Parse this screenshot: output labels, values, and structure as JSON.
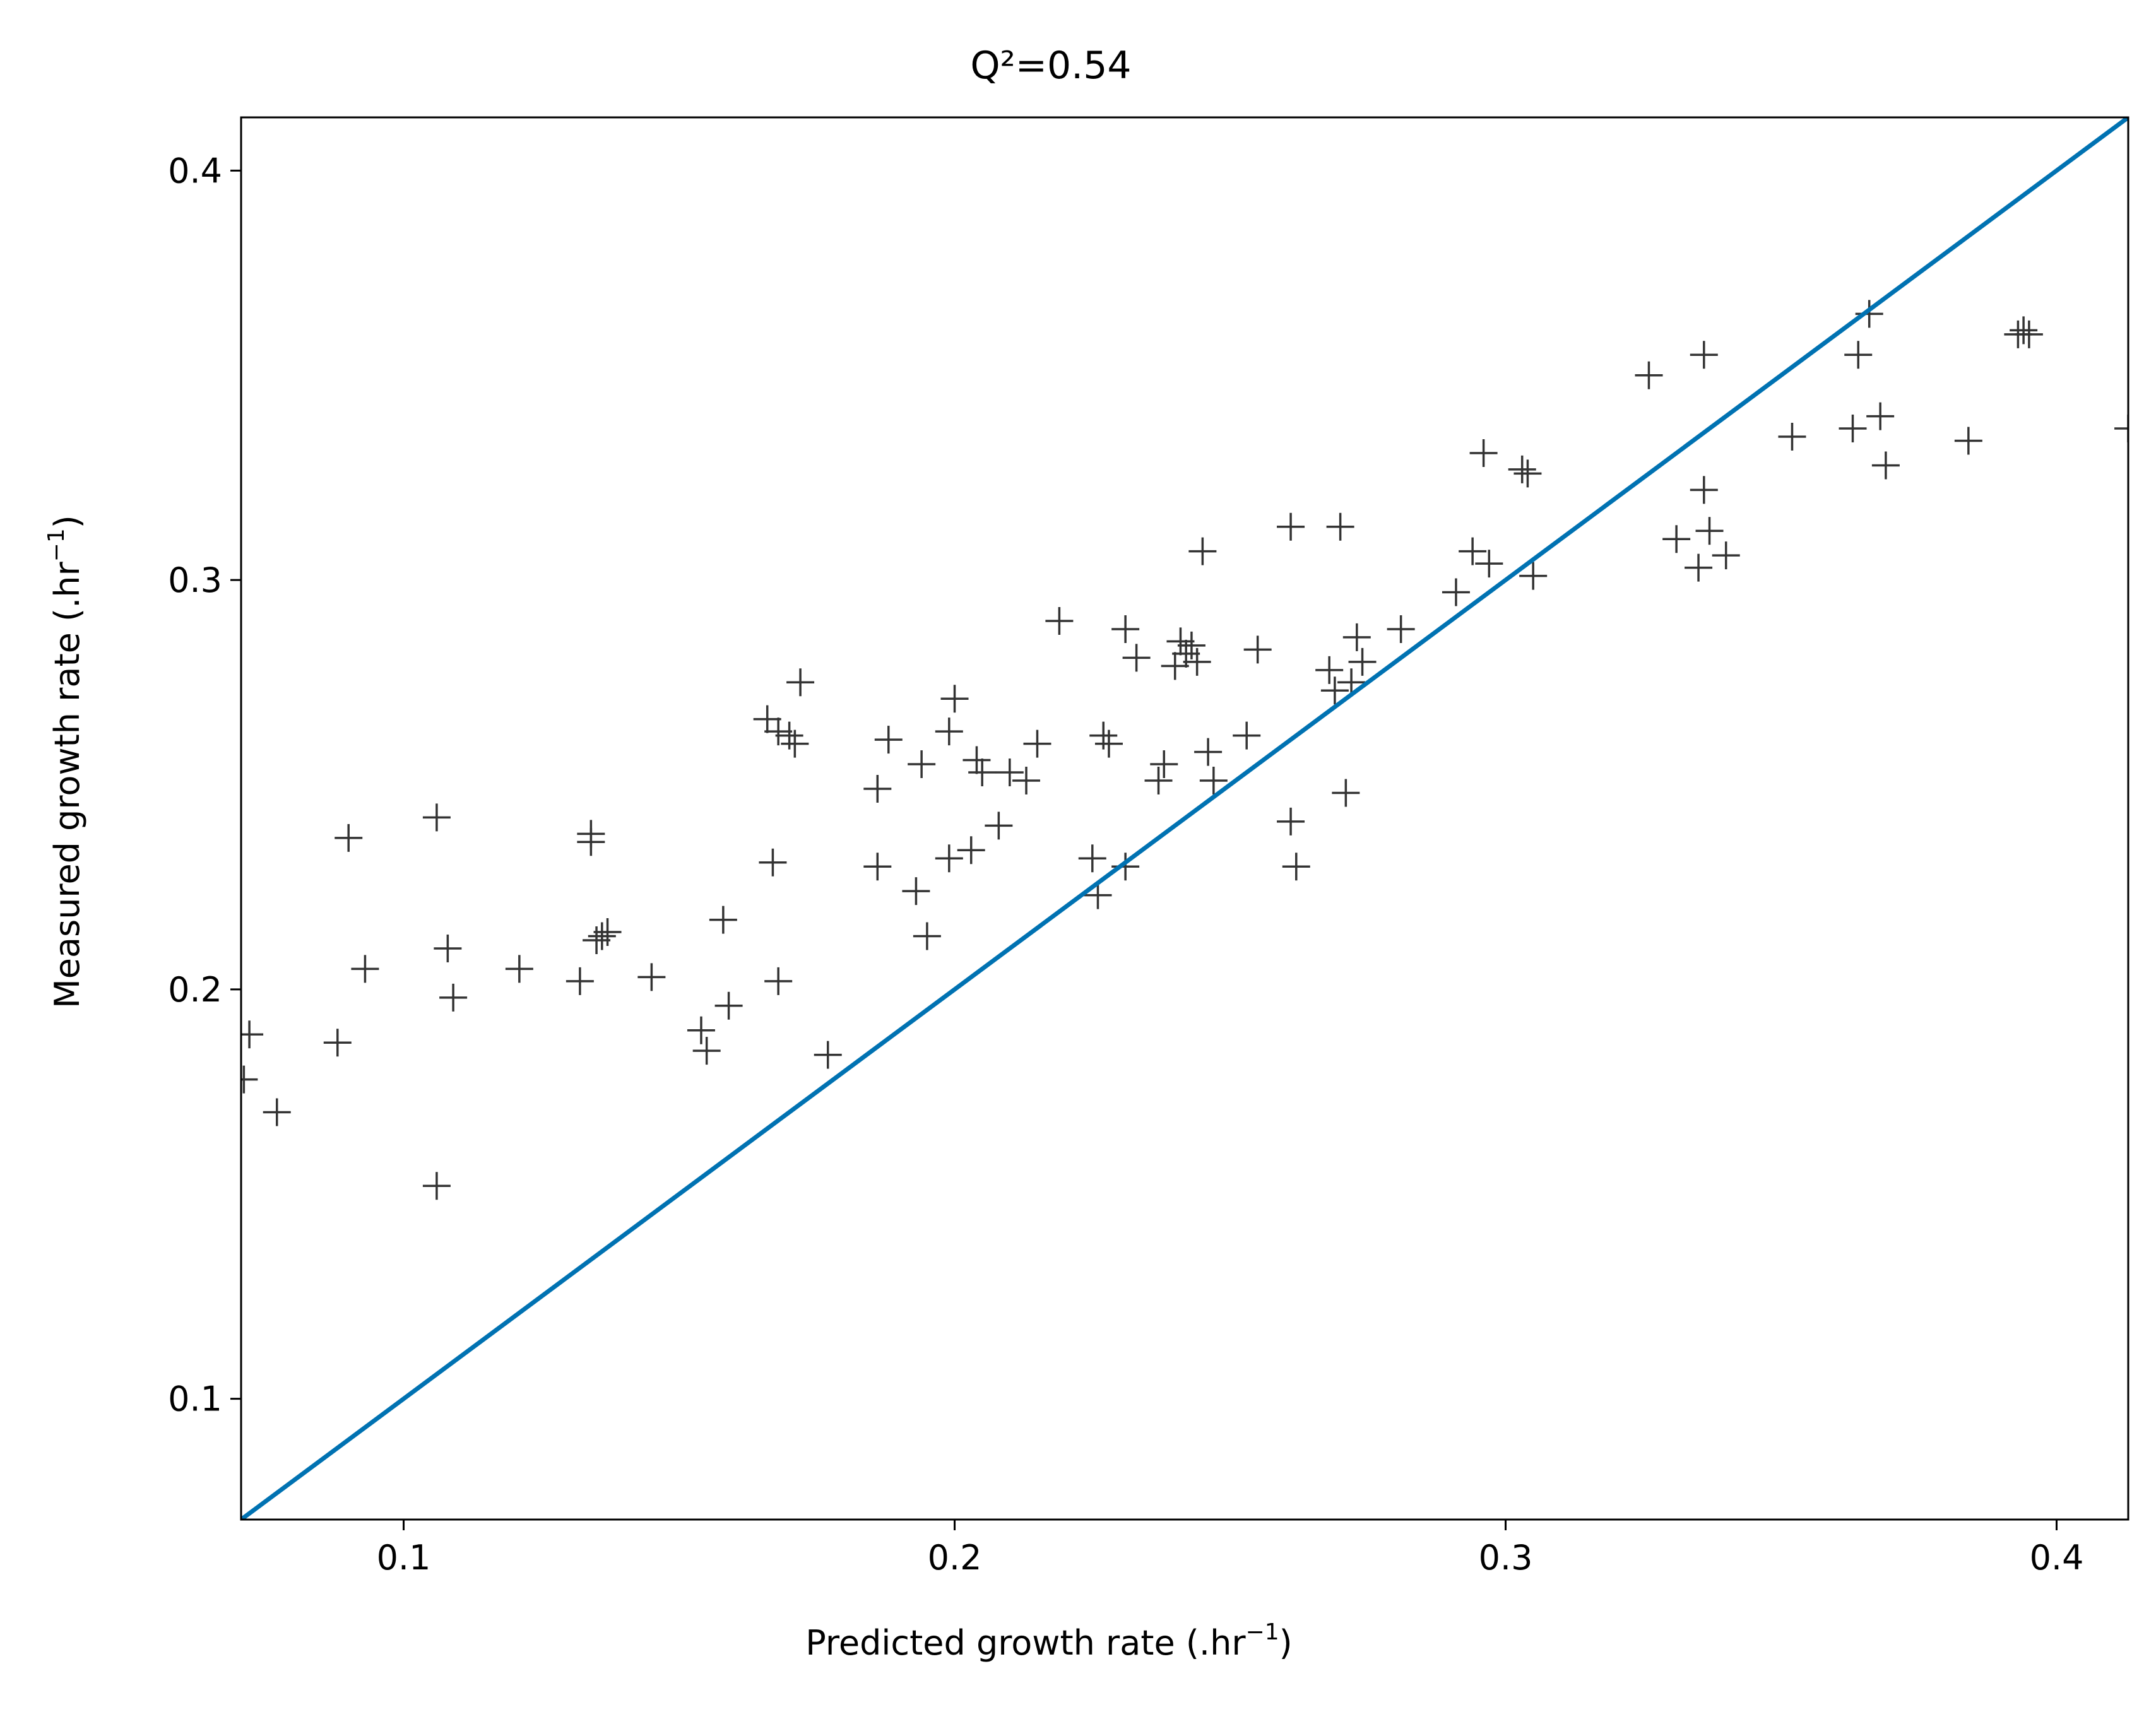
{
  "chart_data": {
    "type": "scatter",
    "title": "Q²=0.54",
    "xlabel": {
      "text": "Predicted growth rate (.hr",
      "sup": "−1",
      "close": ")"
    },
    "ylabel": {
      "text": "Measured growth rate (.hr",
      "sup": "−1",
      "close": ")"
    },
    "xlim": [
      0.0705,
      0.413
    ],
    "ylim": [
      0.0705,
      0.413
    ],
    "xticks": [
      0.1,
      0.2,
      0.3,
      0.4
    ],
    "yticks": [
      0.1,
      0.2,
      0.3,
      0.4
    ],
    "xtick_labels": [
      "0.1",
      "0.2",
      "0.3",
      "0.4"
    ],
    "ytick_labels": [
      "0.1",
      "0.2",
      "0.3",
      "0.4"
    ],
    "grid": false,
    "marker": "+",
    "colors": {
      "marker": "#333333",
      "line": "#0072b2",
      "axes": "#000000"
    },
    "reference_line": {
      "kind": "identity",
      "x": [
        0.0705,
        0.413
      ],
      "y": [
        0.0705,
        0.413
      ]
    },
    "series": [
      {
        "points": [
          [
            0.071,
            0.178
          ],
          [
            0.072,
            0.189
          ],
          [
            0.077,
            0.17
          ],
          [
            0.088,
            0.187
          ],
          [
            0.09,
            0.237
          ],
          [
            0.093,
            0.205
          ],
          [
            0.106,
            0.242
          ],
          [
            0.106,
            0.152
          ],
          [
            0.108,
            0.21
          ],
          [
            0.109,
            0.198
          ],
          [
            0.121,
            0.205
          ],
          [
            0.132,
            0.202
          ],
          [
            0.134,
            0.238
          ],
          [
            0.134,
            0.236
          ],
          [
            0.135,
            0.212
          ],
          [
            0.136,
            0.213
          ],
          [
            0.137,
            0.214
          ],
          [
            0.145,
            0.203
          ],
          [
            0.154,
            0.19
          ],
          [
            0.155,
            0.185
          ],
          [
            0.158,
            0.217
          ],
          [
            0.159,
            0.196
          ],
          [
            0.166,
            0.266
          ],
          [
            0.167,
            0.231
          ],
          [
            0.168,
            0.263
          ],
          [
            0.168,
            0.202
          ],
          [
            0.17,
            0.262
          ],
          [
            0.171,
            0.26
          ],
          [
            0.172,
            0.275
          ],
          [
            0.177,
            0.184
          ],
          [
            0.186,
            0.249
          ],
          [
            0.186,
            0.23
          ],
          [
            0.188,
            0.261
          ],
          [
            0.193,
            0.224
          ],
          [
            0.194,
            0.255
          ],
          [
            0.195,
            0.213
          ],
          [
            0.199,
            0.263
          ],
          [
            0.199,
            0.232
          ],
          [
            0.2,
            0.271
          ],
          [
            0.203,
            0.234
          ],
          [
            0.204,
            0.256
          ],
          [
            0.205,
            0.253
          ],
          [
            0.208,
            0.24
          ],
          [
            0.21,
            0.253
          ],
          [
            0.213,
            0.251
          ],
          [
            0.215,
            0.26
          ],
          [
            0.219,
            0.29
          ],
          [
            0.225,
            0.232
          ],
          [
            0.226,
            0.223
          ],
          [
            0.227,
            0.262
          ],
          [
            0.228,
            0.26
          ],
          [
            0.231,
            0.288
          ],
          [
            0.231,
            0.23
          ],
          [
            0.233,
            0.281
          ],
          [
            0.237,
            0.251
          ],
          [
            0.238,
            0.255
          ],
          [
            0.24,
            0.279
          ],
          [
            0.241,
            0.285
          ],
          [
            0.242,
            0.282
          ],
          [
            0.243,
            0.284
          ],
          [
            0.244,
            0.28
          ],
          [
            0.245,
            0.307
          ],
          [
            0.246,
            0.258
          ],
          [
            0.247,
            0.251
          ],
          [
            0.253,
            0.262
          ],
          [
            0.255,
            0.283
          ],
          [
            0.261,
            0.241
          ],
          [
            0.261,
            0.313
          ],
          [
            0.262,
            0.23
          ],
          [
            0.268,
            0.278
          ],
          [
            0.269,
            0.273
          ],
          [
            0.27,
            0.313
          ],
          [
            0.271,
            0.248
          ],
          [
            0.272,
            0.275
          ],
          [
            0.273,
            0.286
          ],
          [
            0.274,
            0.28
          ],
          [
            0.281,
            0.288
          ],
          [
            0.291,
            0.297
          ],
          [
            0.294,
            0.307
          ],
          [
            0.296,
            0.331
          ],
          [
            0.297,
            0.304
          ],
          [
            0.303,
            0.327
          ],
          [
            0.304,
            0.326
          ],
          [
            0.305,
            0.301
          ],
          [
            0.326,
            0.35
          ],
          [
            0.331,
            0.31
          ],
          [
            0.335,
            0.303
          ],
          [
            0.336,
            0.355
          ],
          [
            0.336,
            0.322
          ],
          [
            0.337,
            0.312
          ],
          [
            0.34,
            0.306
          ],
          [
            0.352,
            0.335
          ],
          [
            0.363,
            0.337
          ],
          [
            0.364,
            0.355
          ],
          [
            0.366,
            0.365
          ],
          [
            0.368,
            0.34
          ],
          [
            0.369,
            0.328
          ],
          [
            0.384,
            0.334
          ],
          [
            0.393,
            0.36
          ],
          [
            0.394,
            0.361
          ],
          [
            0.395,
            0.36
          ],
          [
            0.413,
            0.337
          ]
        ]
      }
    ]
  }
}
